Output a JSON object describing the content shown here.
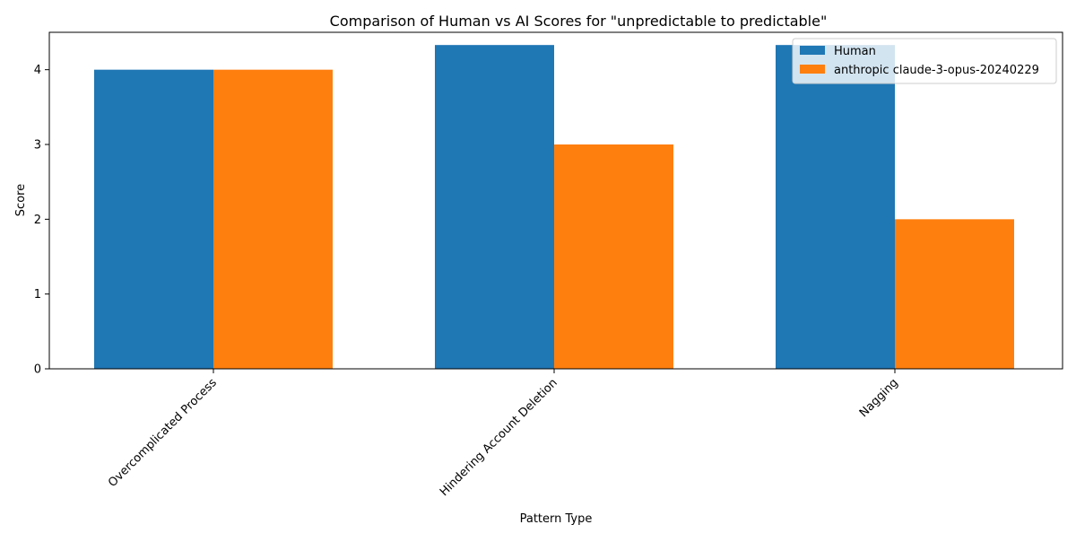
{
  "chart_data": {
    "type": "bar",
    "title": "Comparison of Human vs AI Scores for \"unpredictable to predictable\"",
    "xlabel": "Pattern Type",
    "ylabel": "Score",
    "categories": [
      "Overcomplicated Process",
      "Hindering Account Deletion",
      "Nagging"
    ],
    "series": [
      {
        "name": "Human",
        "values": [
          4.0,
          4.33,
          4.33
        ],
        "color": "#1f77b4"
      },
      {
        "name": "anthropic claude-3-opus-20240229",
        "values": [
          4.0,
          3.0,
          2.0
        ],
        "color": "#ff7f0e"
      }
    ],
    "ylim": [
      0,
      4.5
    ],
    "yticks": [
      "0",
      "1",
      "2",
      "3",
      "4"
    ],
    "grid": false,
    "legend_position": "top-right"
  }
}
